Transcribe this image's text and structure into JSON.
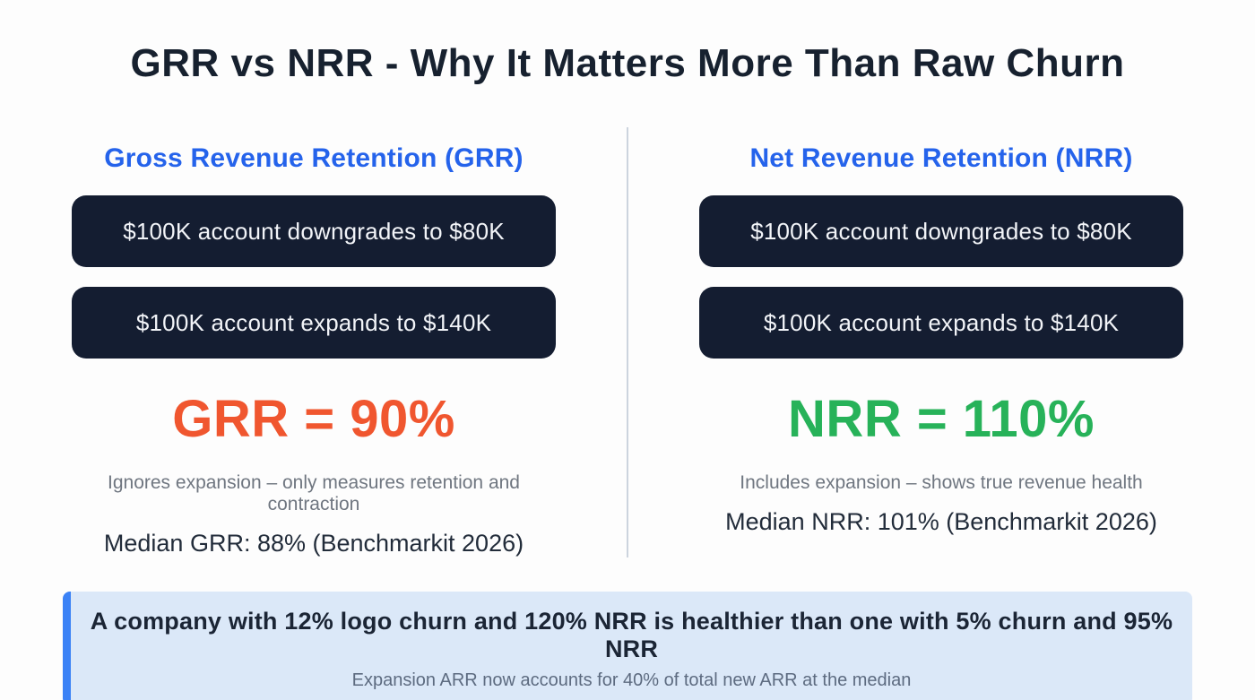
{
  "title": "GRR vs NRR - Why It Matters More Than Raw Churn",
  "columns": [
    {
      "heading": "Gross Revenue Retention (GRR)",
      "pills": [
        "$100K account downgrades to $80K",
        "$100K account expands to $140K"
      ],
      "metric": "GRR = 90%",
      "metric_color": "#F0562F",
      "description": "Ignores expansion – only measures retention and contraction",
      "benchmark": "Median GRR: 88% (Benchmarkit 2026)"
    },
    {
      "heading": "Net Revenue Retention (NRR)",
      "pills": [
        "$100K account downgrades to $80K",
        "$100K account expands to $140K"
      ],
      "metric": "NRR = 110%",
      "metric_color": "#27B259",
      "description": "Includes expansion – shows true revenue health",
      "benchmark": "Median NRR: 101% (Benchmarkit 2026)"
    }
  ],
  "callout": {
    "headline": "A company with 12% logo churn and 120% NRR is healthier than one with 5% churn and 95% NRR",
    "subtext": "Expansion ARR now accounts for 40% of total new ARR at the median"
  },
  "colors": {
    "title_text": "#17212F",
    "heading_blue": "#2563EB",
    "pill_background": "#141D31",
    "pill_text": "#F2F4F8",
    "grr_orange": "#F0562F",
    "nrr_green": "#27B259",
    "muted_gray": "#6F7680",
    "callout_background": "#DBE8F8",
    "callout_border": "#3B82F6"
  }
}
